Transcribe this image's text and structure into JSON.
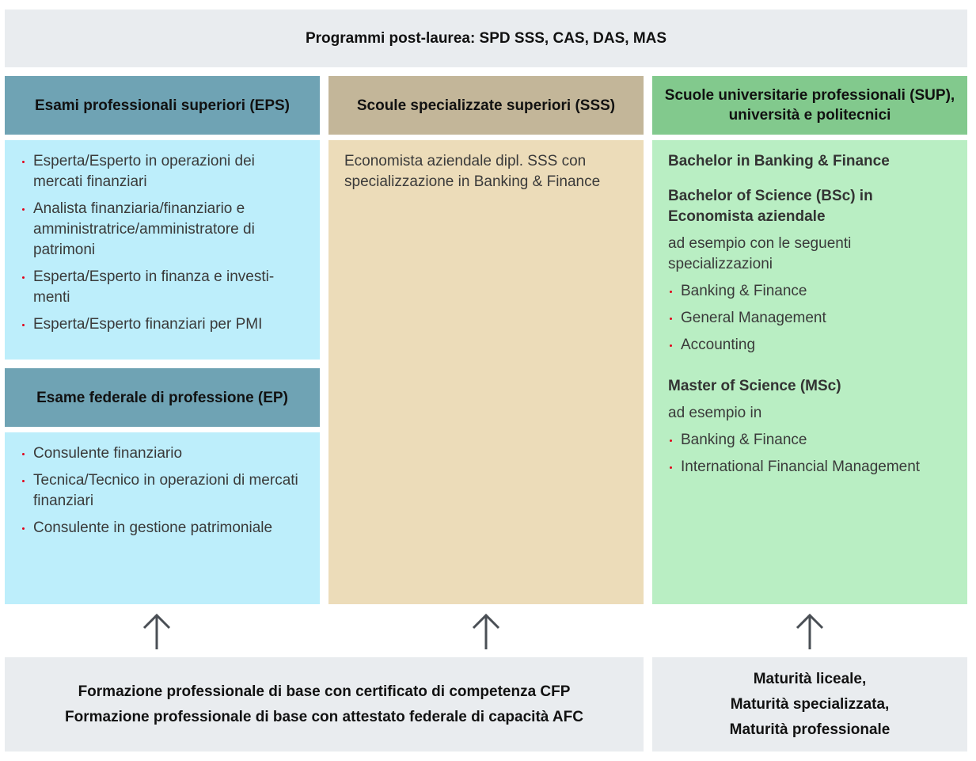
{
  "top": {
    "title": "Programmi post-laurea: SPD SSS, CAS, DAS, MAS"
  },
  "colors": {
    "eps_header": "#6fa3b4",
    "eps_body": "#bdeefb",
    "sss_header": "#c3b699",
    "sss_body": "#ecdcb9",
    "sup_header": "#82c98d",
    "sup_body": "#b9eec3",
    "gray": "#e9ecef",
    "bullet": "#e2001a"
  },
  "eps": {
    "title": "Esami professionali superiori (EPS)",
    "items": [
      "Esperta/Esperto in operazioni dei mercati finanziari",
      "Analista finanziaria/finanziario e amministratrice/amministratore di patrimoni",
      "Esperta/Esperto in finanza e investi-menti",
      "Esperta/Esperto finanziari per PMI"
    ]
  },
  "ep": {
    "title": "Esame federale di professione (EP)",
    "items": [
      "Consulente finanziario",
      "Tecnica/Tecnico in operazioni di mercati finanziari",
      "Consulente in gestione patrimoniale"
    ]
  },
  "sss": {
    "title": "Scoule specializzate superiori (SSS)",
    "text": "Economista aziendale dipl. SSS con specializzazione in Banking & Finance"
  },
  "sup": {
    "title": "Scuole universitarie professionali (SUP), università e politecnici",
    "bachelor1": "Bachelor in Banking & Finance",
    "bachelor2": "Bachelor of Science (BSc) in Economista aziendale",
    "bachelor2_intro": "ad esempio con le seguenti specializzazioni",
    "bachelor2_items": [
      "Banking & Finance",
      "General Management",
      "Accounting"
    ],
    "master": "Master of Science (MSc)",
    "master_intro": "ad esempio in",
    "master_items": [
      "Banking & Finance",
      "International Financial Management"
    ]
  },
  "bottom_left": {
    "lines": [
      "Formazione professionale di base con certificato di competenza CFP",
      "Formazione professionale di base con attestato federale di capacità AFC"
    ]
  },
  "bottom_right": {
    "lines": [
      "Maturità liceale,",
      "Maturità specializzata,",
      "Maturità professionale"
    ]
  }
}
